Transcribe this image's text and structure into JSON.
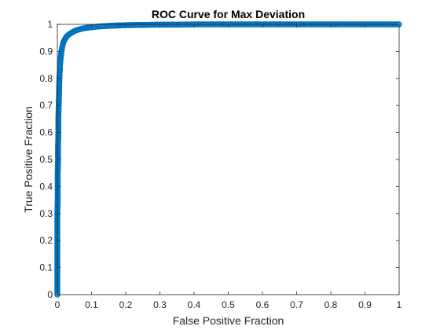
{
  "chart_data": {
    "type": "scatter",
    "title": "ROC Curve for Max Deviation",
    "xlabel": "False Positive Fraction",
    "ylabel": "True Positive Fraction",
    "xlim": [
      0,
      1
    ],
    "ylim": [
      0,
      1
    ],
    "xticks": [
      0,
      0.1,
      0.2,
      0.3,
      0.4,
      0.5,
      0.6,
      0.7,
      0.8,
      0.9,
      1
    ],
    "xtick_labels": [
      "0",
      "0.1",
      "0.2",
      "0.3",
      "0.4",
      "0.5",
      "0.6",
      "0.7",
      "0.8",
      "0.9",
      "1"
    ],
    "yticks": [
      0,
      0.1,
      0.2,
      0.3,
      0.4,
      0.5,
      0.6,
      0.7,
      0.8,
      0.9,
      1
    ],
    "ytick_labels": [
      "0",
      "0.1",
      "0.2",
      "0.3",
      "0.4",
      "0.5",
      "0.6",
      "0.7",
      "0.8",
      "0.9",
      "1"
    ],
    "grid": false,
    "marker": "circle",
    "series_color": "#0072bd",
    "series": [
      {
        "x": [
          0,
          0,
          0,
          0,
          0,
          0,
          0,
          0.001,
          0.001,
          0.001,
          0.002,
          0.002,
          0.003,
          0.003,
          0.004,
          0.005,
          0.006,
          0.008,
          0.01,
          0.012,
          0.015,
          0.018,
          0.022,
          0.027,
          0.033,
          0.04,
          0.05,
          0.06,
          0.075,
          0.09,
          0.11,
          0.13,
          0.16,
          0.2,
          0.25,
          0.3,
          0.35,
          0.4,
          0.45,
          0.5,
          0.55,
          0.6,
          0.65,
          0.7,
          0.75,
          0.8,
          0.85,
          0.9,
          0.95,
          1.0
        ],
        "y": [
          0,
          0.05,
          0.1,
          0.15,
          0.2,
          0.25,
          0.3,
          0.35,
          0.4,
          0.45,
          0.5,
          0.55,
          0.6,
          0.65,
          0.7,
          0.75,
          0.8,
          0.85,
          0.88,
          0.9,
          0.92,
          0.935,
          0.945,
          0.955,
          0.962,
          0.968,
          0.975,
          0.98,
          0.985,
          0.988,
          0.991,
          0.993,
          0.995,
          0.997,
          0.998,
          0.999,
          0.999,
          1.0,
          1.0,
          1.0,
          1.0,
          1.0,
          1.0,
          1.0,
          1.0,
          1.0,
          1.0,
          1.0,
          1.0,
          1.0
        ]
      }
    ]
  }
}
